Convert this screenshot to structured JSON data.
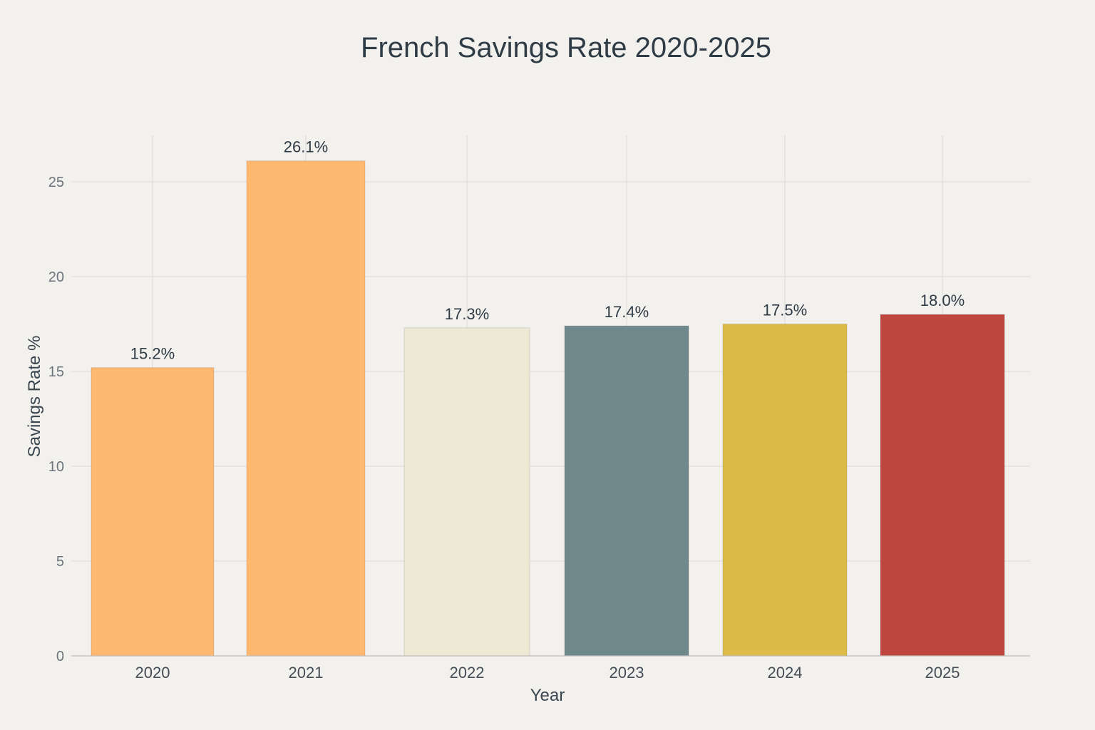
{
  "chart_data": {
    "type": "bar",
    "title": "French Savings Rate 2020-2025",
    "xlabel": "Year",
    "ylabel": "Savings Rate %",
    "categories": [
      "2020",
      "2021",
      "2022",
      "2023",
      "2024",
      "2025"
    ],
    "values": [
      15.2,
      26.1,
      17.3,
      17.4,
      17.5,
      18.0
    ],
    "data_labels": [
      "15.2%",
      "26.1%",
      "17.3%",
      "17.4%",
      "17.5%",
      "18.0%"
    ],
    "colors": [
      "#ffb870",
      "#ffb870",
      "#ede9d5",
      "#6e888b",
      "#ddbb48",
      "#bd473f"
    ],
    "y_ticks": [
      "0",
      "5",
      "10",
      "15",
      "20",
      "25"
    ],
    "ylim": [
      0,
      27.5
    ],
    "grid": true,
    "legend": "none"
  }
}
